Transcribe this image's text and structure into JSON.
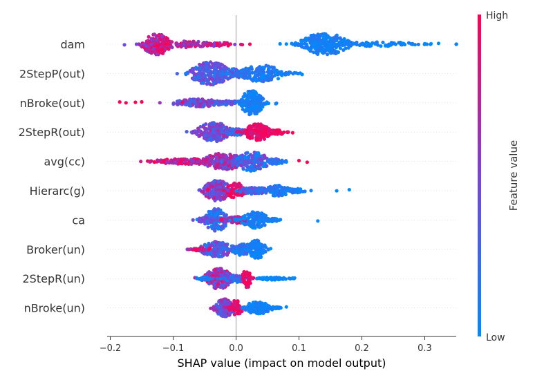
{
  "chart_data": {
    "type": "scatter",
    "subtype": "shap-beeswarm",
    "title": "",
    "xlabel": "SHAP value (impact on model output)",
    "ylabel": "",
    "xlim": [
      -0.205,
      0.35
    ],
    "xticks": [
      -0.2,
      -0.1,
      0.0,
      0.1,
      0.2,
      0.3
    ],
    "xtick_labels": [
      "−0.2",
      "−0.1",
      "0.0",
      "0.1",
      "0.2",
      "0.3"
    ],
    "grid": false,
    "colorbar": {
      "label": "Feature value",
      "high_label": "High",
      "low_label": "Low",
      "low_color": "#008bfb",
      "mid_color": "#7a44d6",
      "high_color": "#ff0052"
    },
    "features": [
      {
        "name": "dam",
        "clusters": [
          {
            "center": -0.125,
            "spread": 0.013,
            "n": 170,
            "height": 0.38,
            "fmin": 0.45,
            "fmax": 1.0
          },
          {
            "center": -0.085,
            "spread": 0.028,
            "n": 90,
            "height": 0.12,
            "fmin": 0.5,
            "fmax": 1.0
          },
          {
            "center": -0.03,
            "spread": 0.018,
            "n": 40,
            "height": 0.07,
            "fmin": 0.5,
            "fmax": 1.0
          },
          {
            "center": 0.14,
            "spread": 0.022,
            "n": 230,
            "height": 0.4,
            "fmin": 0.0,
            "fmax": 0.18
          },
          {
            "center": 0.215,
            "spread": 0.045,
            "n": 90,
            "height": 0.08,
            "fmin": 0.0,
            "fmax": 0.12
          }
        ],
        "outliers": [
          {
            "x": 0.07,
            "f": 0.0
          },
          {
            "x": 0.08,
            "f": 0.0
          },
          {
            "x": 0.3,
            "f": 0.0
          },
          {
            "x": 0.31,
            "f": 0.0
          },
          {
            "x": 0.322,
            "f": 0.0
          },
          {
            "x": 0.01,
            "f": 0.9
          },
          {
            "x": 0.022,
            "f": 0.95
          }
        ]
      },
      {
        "name": "2StepP(out)",
        "clusters": [
          {
            "center": -0.04,
            "spread": 0.018,
            "n": 230,
            "height": 0.42,
            "fmin": 0.1,
            "fmax": 0.6
          },
          {
            "center": -0.01,
            "spread": 0.02,
            "n": 70,
            "height": 0.18,
            "fmin": 0.1,
            "fmax": 0.5
          },
          {
            "center": 0.04,
            "spread": 0.02,
            "n": 140,
            "height": 0.3,
            "fmin": 0.0,
            "fmax": 0.25
          },
          {
            "center": 0.08,
            "spread": 0.01,
            "n": 15,
            "height": 0.05,
            "fmin": 0.0,
            "fmax": 0.15
          }
        ],
        "outliers": [
          {
            "x": -0.08,
            "f": 0.1
          },
          {
            "x": 0.105,
            "f": 0.0
          }
        ]
      },
      {
        "name": "nBroke(out)",
        "clusters": [
          {
            "center": -0.06,
            "spread": 0.022,
            "n": 160,
            "height": 0.14,
            "fmin": 0.2,
            "fmax": 0.7
          },
          {
            "center": -0.015,
            "spread": 0.012,
            "n": 40,
            "height": 0.1,
            "fmin": 0.2,
            "fmax": 0.6
          },
          {
            "center": 0.025,
            "spread": 0.01,
            "n": 180,
            "height": 0.45,
            "fmin": 0.0,
            "fmax": 0.15
          }
        ],
        "outliers": [
          {
            "x": -0.185,
            "f": 1.0
          },
          {
            "x": -0.175,
            "f": 1.0
          },
          {
            "x": -0.16,
            "f": 1.0
          },
          {
            "x": -0.15,
            "f": 1.0
          },
          {
            "x": -0.085,
            "f": 0.9
          },
          {
            "x": 0.05,
            "f": 0.0
          }
        ]
      },
      {
        "name": "2StepR(out)",
        "clusters": [
          {
            "center": -0.035,
            "spread": 0.015,
            "n": 190,
            "height": 0.35,
            "fmin": 0.2,
            "fmax": 0.7
          },
          {
            "center": 0.0,
            "spread": 0.01,
            "n": 60,
            "height": 0.12,
            "fmin": 0.1,
            "fmax": 0.5
          },
          {
            "center": 0.035,
            "spread": 0.012,
            "n": 150,
            "height": 0.3,
            "fmin": 0.8,
            "fmax": 1.0
          },
          {
            "center": 0.065,
            "spread": 0.01,
            "n": 40,
            "height": 0.08,
            "fmin": 0.85,
            "fmax": 1.0
          }
        ],
        "outliers": [
          {
            "x": 0.09,
            "f": 1.0
          }
        ]
      },
      {
        "name": "avg(cc)",
        "clusters": [
          {
            "center": -0.07,
            "spread": 0.035,
            "n": 140,
            "height": 0.1,
            "fmin": 0.55,
            "fmax": 1.0
          },
          {
            "center": -0.02,
            "spread": 0.018,
            "n": 170,
            "height": 0.3,
            "fmin": 0.3,
            "fmax": 0.85
          },
          {
            "center": 0.025,
            "spread": 0.015,
            "n": 160,
            "height": 0.35,
            "fmin": 0.0,
            "fmax": 0.6
          },
          {
            "center": 0.06,
            "spread": 0.012,
            "n": 40,
            "height": 0.1,
            "fmin": 0.0,
            "fmax": 0.3
          }
        ],
        "outliers": [
          {
            "x": -0.13,
            "f": 1.0
          },
          {
            "x": -0.115,
            "f": 1.0
          },
          {
            "x": 0.1,
            "f": 1.0
          },
          {
            "x": 0.113,
            "f": 1.0
          },
          {
            "x": 0.08,
            "f": 0.0
          }
        ]
      },
      {
        "name": "Hierarc(g)",
        "clusters": [
          {
            "center": -0.03,
            "spread": 0.012,
            "n": 200,
            "height": 0.38,
            "fmin": 0.2,
            "fmax": 0.8
          },
          {
            "center": 0.0,
            "spread": 0.008,
            "n": 60,
            "height": 0.3,
            "fmin": 0.8,
            "fmax": 1.0
          },
          {
            "center": 0.03,
            "spread": 0.015,
            "n": 90,
            "height": 0.12,
            "fmin": 0.1,
            "fmax": 0.5
          },
          {
            "center": 0.065,
            "spread": 0.012,
            "n": 80,
            "height": 0.2,
            "fmin": 0.0,
            "fmax": 0.25
          },
          {
            "center": 0.095,
            "spread": 0.01,
            "n": 25,
            "height": 0.08,
            "fmin": 0.0,
            "fmax": 0.15
          }
        ],
        "outliers": [
          {
            "x": -0.045,
            "f": 1.0
          },
          {
            "x": 0.16,
            "f": 0.0
          },
          {
            "x": 0.18,
            "f": 0.0
          }
        ]
      },
      {
        "name": "ca",
        "clusters": [
          {
            "center": -0.032,
            "spread": 0.01,
            "n": 150,
            "height": 0.42,
            "fmin": 0.0,
            "fmax": 0.4
          },
          {
            "center": -0.05,
            "spread": 0.008,
            "n": 25,
            "height": 0.08,
            "fmin": 0.2,
            "fmax": 0.6
          },
          {
            "center": 0.0,
            "spread": 0.012,
            "n": 70,
            "height": 0.12,
            "fmin": 0.4,
            "fmax": 1.0
          },
          {
            "center": 0.03,
            "spread": 0.012,
            "n": 120,
            "height": 0.3,
            "fmin": 0.0,
            "fmax": 0.2
          },
          {
            "center": 0.055,
            "spread": 0.008,
            "n": 25,
            "height": 0.06,
            "fmin": 0.0,
            "fmax": 0.15
          }
        ],
        "outliers": [
          {
            "x": 0.13,
            "f": 0.0
          }
        ]
      },
      {
        "name": "Broker(un)",
        "clusters": [
          {
            "center": -0.03,
            "spread": 0.015,
            "n": 180,
            "height": 0.28,
            "fmin": 0.0,
            "fmax": 0.6
          },
          {
            "center": -0.055,
            "spread": 0.01,
            "n": 25,
            "height": 0.06,
            "fmin": 0.5,
            "fmax": 1.0
          },
          {
            "center": 0.01,
            "spread": 0.01,
            "n": 90,
            "height": 0.22,
            "fmin": 0.0,
            "fmax": 0.3
          },
          {
            "center": 0.033,
            "spread": 0.008,
            "n": 100,
            "height": 0.34,
            "fmin": 0.0,
            "fmax": 0.2
          }
        ],
        "outliers": [
          {
            "x": -0.065,
            "f": 1.0
          },
          {
            "x": 0.055,
            "f": 0.0
          }
        ]
      },
      {
        "name": "2StepR(un)",
        "clusters": [
          {
            "center": -0.028,
            "spread": 0.012,
            "n": 200,
            "height": 0.38,
            "fmin": 0.3,
            "fmax": 0.9
          },
          {
            "center": -0.05,
            "spread": 0.008,
            "n": 25,
            "height": 0.06,
            "fmin": 0.0,
            "fmax": 0.3
          },
          {
            "center": 0.0,
            "spread": 0.01,
            "n": 70,
            "height": 0.14,
            "fmin": 0.0,
            "fmax": 0.5
          },
          {
            "center": 0.017,
            "spread": 0.004,
            "n": 50,
            "height": 0.34,
            "fmin": 0.85,
            "fmax": 1.0
          },
          {
            "center": 0.06,
            "spread": 0.015,
            "n": 50,
            "height": 0.05,
            "fmin": 0.0,
            "fmax": 0.1
          }
        ],
        "outliers": [
          {
            "x": 0.09,
            "f": 0.0
          },
          {
            "x": 0.093,
            "f": 0.0
          }
        ]
      },
      {
        "name": "nBroke(un)",
        "clusters": [
          {
            "center": -0.018,
            "spread": 0.009,
            "n": 150,
            "height": 0.32,
            "fmin": 0.2,
            "fmax": 0.75
          },
          {
            "center": 0.0,
            "spread": 0.006,
            "n": 50,
            "height": 0.28,
            "fmin": 0.8,
            "fmax": 1.0
          },
          {
            "center": 0.035,
            "spread": 0.012,
            "n": 110,
            "height": 0.22,
            "fmin": 0.0,
            "fmax": 0.15
          },
          {
            "center": 0.06,
            "spread": 0.008,
            "n": 25,
            "height": 0.05,
            "fmin": 0.0,
            "fmax": 0.1
          }
        ],
        "outliers": [
          {
            "x": 0.08,
            "f": 0.0
          }
        ]
      }
    ]
  }
}
